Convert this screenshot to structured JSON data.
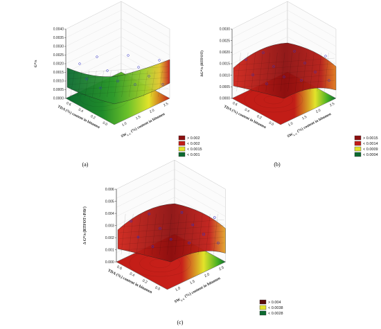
{
  "chart_data": [
    {
      "type": "surface3d",
      "panel_label": "(a)",
      "z_label": "G*/s",
      "x_label": "SW",
      "x_label_sub": "L-C",
      "x_label_rest": "(%) content in bitumen",
      "y_label": "TDA (%) content in bitumen",
      "x_ticks": [
        "1.0",
        "1.5",
        "2.0",
        "2.5"
      ],
      "y_ticks": [
        "0.0",
        "0.2",
        "0.4",
        "0.6"
      ],
      "z_ticks": [
        "0.0000",
        "0.0005",
        "0.0010",
        "0.0015",
        "0.0020",
        "0.0025",
        "0.0030",
        "0.0035",
        "0.0040"
      ],
      "zlim": [
        0,
        0.004
      ],
      "surface_shape": "bowl",
      "surface_colors": [
        "#0c6a30",
        "#44b022",
        "#e3e32a",
        "#c21d17"
      ],
      "legend": [
        {
          "label": "> 0.002",
          "color": "#8c0f0f"
        },
        {
          "label": "< 0.002",
          "color": "#c21d17"
        },
        {
          "label": "< 0.0015",
          "color": "#e3e32a"
        },
        {
          "label": "< 0.001",
          "color": "#0c6a30"
        }
      ]
    },
    {
      "type": "surface3d",
      "panel_label": "(b)",
      "z_label": "ΔG*/s (RTFOT)",
      "x_label": "SW",
      "x_label_sub": "L-C",
      "x_label_rest": "(%) content in bitumen",
      "y_label": "TDA (%) content in bitumen",
      "x_ticks": [
        "1.0",
        "1.5",
        "2.0",
        "2.5"
      ],
      "y_ticks": [
        "0.0",
        "0.2",
        "0.4",
        "0.6"
      ],
      "z_ticks": [
        "0.0000",
        "0.0005",
        "0.0010",
        "0.0015",
        "0.0020",
        "0.0025",
        "0.0030"
      ],
      "zlim": [
        0,
        0.003
      ],
      "surface_shape": "dome",
      "surface_colors": [
        "#0c6a30",
        "#e3e32a",
        "#c21d17",
        "#8c0f0f"
      ],
      "legend": [
        {
          "label": "> 0.0015",
          "color": "#8c0f0f"
        },
        {
          "label": "< 0.0014",
          "color": "#c21d17"
        },
        {
          "label": "< 0.0009",
          "color": "#e3e32a"
        },
        {
          "label": "< 0.0004",
          "color": "#0c6a30"
        }
      ]
    },
    {
      "type": "surface3d",
      "panel_label": "(c)",
      "z_label": "Δ G*/s (RTFOT+PAV)",
      "x_label": "SW",
      "x_label_sub": "L-C",
      "x_label_rest": "(%) content in bitumen",
      "y_label": "TDA (%) content in bitumen",
      "x_ticks": [
        "1.0",
        "1.5",
        "2.0",
        "2.5"
      ],
      "y_ticks": [
        "0.0",
        "0.2",
        "0.4",
        "0.6"
      ],
      "z_ticks": [
        "0.000",
        "0.001",
        "0.002",
        "0.003",
        "0.004",
        "0.005",
        "0.006"
      ],
      "zlim": [
        0,
        0.006
      ],
      "surface_shape": "dome",
      "surface_colors": [
        "#0c6a30",
        "#e3e32a",
        "#c21d17",
        "#8c0f0f"
      ],
      "legend": [
        {
          "label": "> 0.004",
          "color": "#5a0a0a"
        },
        {
          "label": "< 0.0038",
          "color": "#e3e32a"
        },
        {
          "label": "< 0.0028",
          "color": "#0c6a30"
        }
      ]
    }
  ]
}
